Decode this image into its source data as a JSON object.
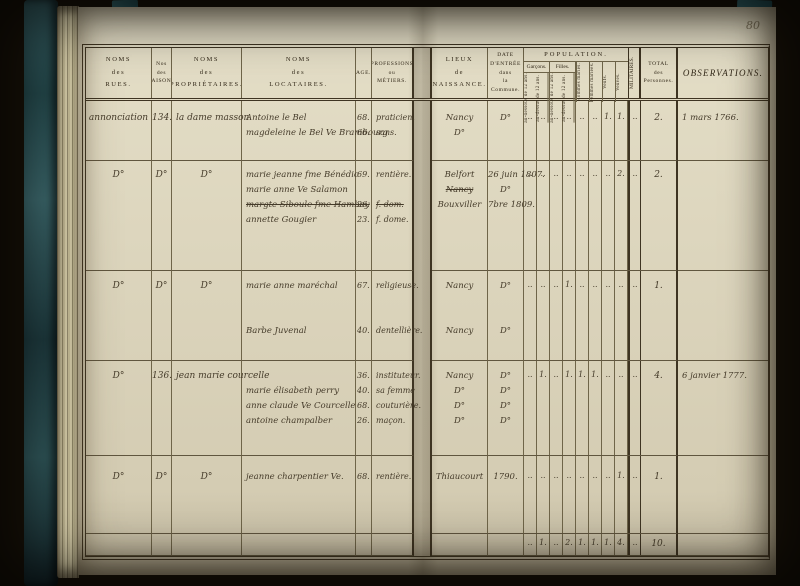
{
  "page_number": "80",
  "header": {
    "rues": "NOMS\ndes\nRUES.",
    "maisons": "Nos\ndes\nMAISONS.",
    "proprietaires": "NOMS\ndes\nPROPRIÉTAIRES.",
    "locataires": "NOMS\ndes\nLOCATAIRES.",
    "age": "AGE.",
    "professions": "PROFESSIONS\nou\nMÉTIERS.",
    "lieux": "LIEUX\nde\nNAISSANCE.",
    "date": "DATE\nD'ENTRÉE\ndans\nla Commune.",
    "population": "POPULATION.",
    "garcons": "Garçons.",
    "filles": "Filles.",
    "sub_dessous": "au-dessous de 12 ans.",
    "sub_dessus": "au-dessus de 12 ans.",
    "hommes": "Hommes mariés.",
    "femmes": "Femmes mariées.",
    "veufs": "Veufs.",
    "veuves": "Veuves.",
    "militaires": "MILITAIRES.",
    "total": "TOTAL\ndes\nPersonnes.",
    "observations": "OBSERVATIONS."
  },
  "rows": [
    {
      "rue": "annonciation",
      "maison": "134.",
      "prop": "la dame masson",
      "loc": [
        "Antoine le Bel",
        "magdeleine le Bel Ve Brambourg"
      ],
      "age": [
        "68.",
        "66."
      ],
      "prof": [
        "praticien.",
        "sans."
      ],
      "lieu": [
        "Nancy",
        "D°"
      ],
      "date": [
        "D°",
        ""
      ],
      "pop": [
        "..",
        "..",
        "..",
        "..",
        "..",
        "..",
        "1.",
        "1.",
        ".."
      ],
      "total": "2.",
      "obs": "1 mars 1766."
    },
    {
      "rue": "D°",
      "maison": "D°",
      "prop": "D°",
      "loc": [
        "marie jeanne fme Bénédic",
        "marie anne Ve Salamon",
        "margte Siboule fme Hambay",
        "annette Gougier"
      ],
      "age": [
        "69.",
        "",
        "26.",
        "23."
      ],
      "prof": [
        "rentière.",
        "",
        "f. dom.",
        "f. dome."
      ],
      "lieu": [
        "Belfort",
        "Nancy",
        "Bouxviller"
      ],
      "date": [
        "26 juin 1807.",
        "D°",
        "7bre 1809."
      ],
      "pop": [
        "..",
        "..",
        "..",
        "..",
        "..",
        "..",
        "..",
        "2.",
        ".."
      ],
      "total": "2.",
      "obs": ""
    },
    {
      "rue": "D°",
      "maison": "D°",
      "prop": "D°",
      "loc": [
        "marie anne maréchal",
        "Barbe Juvenal"
      ],
      "age": [
        "67.",
        "40."
      ],
      "prof": [
        "religieuse.",
        "dentellière."
      ],
      "lieu": [
        "Nancy",
        "Nancy"
      ],
      "date": [
        "D°",
        "D°"
      ],
      "pop": [
        "..",
        "..",
        "..",
        "1.",
        "..",
        "..",
        "..",
        "..",
        ".."
      ],
      "total": "1.",
      "obs": ""
    },
    {
      "rue": "D°",
      "maison": "136.",
      "prop": "jean marie courcelle",
      "loc": [
        "",
        "marie élisabeth perry",
        "anne claude Ve Courcelle",
        "antoine champalber"
      ],
      "age": [
        "36.",
        "40.",
        "68.",
        "26."
      ],
      "prof": [
        "instituteur.",
        "sa femme",
        "couturière.",
        "maçon."
      ],
      "lieu": [
        "Nancy",
        "D°",
        "D°",
        "D°"
      ],
      "date": [
        "D°",
        "D°",
        "D°",
        "D°"
      ],
      "pop": [
        "..",
        "1.",
        "..",
        "1.",
        "1.",
        "1.",
        "..",
        "..",
        ".."
      ],
      "total": "4.",
      "obs": "6 janvier 1777."
    },
    {
      "rue": "D°",
      "maison": "D°",
      "prop": "D°",
      "loc": [
        "jeanne charpentier Ve."
      ],
      "age": [
        "68."
      ],
      "prof": [
        "rentière."
      ],
      "lieu": [
        "Thiaucourt"
      ],
      "date": [
        "1790."
      ],
      "pop": [
        "..",
        "..",
        "..",
        "..",
        "..",
        "..",
        "..",
        "1.",
        ".."
      ],
      "total": "1.",
      "obs": ""
    }
  ],
  "totals": {
    "pop": [
      "..",
      "1.",
      "..",
      "2.",
      "1.",
      "1.",
      "1.",
      "4.",
      ".."
    ],
    "total": "10."
  }
}
